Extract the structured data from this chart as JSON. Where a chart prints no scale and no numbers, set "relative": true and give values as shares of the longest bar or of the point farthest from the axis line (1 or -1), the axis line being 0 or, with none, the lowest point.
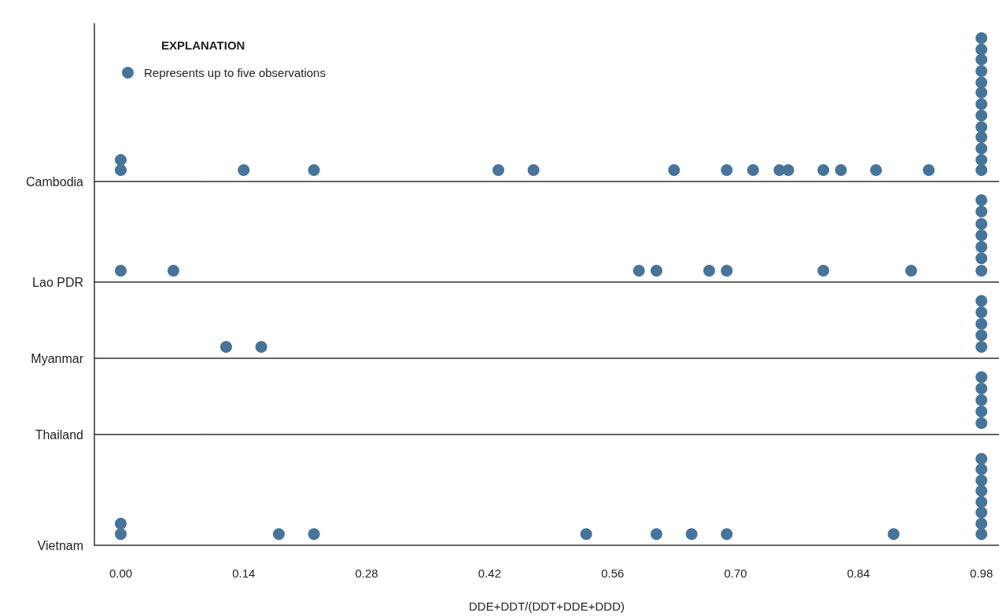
{
  "chart_data": [
    {
      "type": "scatter",
      "ylabel": "Cambodia",
      "legend": "top left",
      "legend_title": "EXPLANATION",
      "marker": "circle",
      "relative": true,
      "tick_labels": false,
      "xlim": [
        -0.03,
        1.0
      ],
      "x": [
        0,
        0,
        0.14,
        0.22,
        0.43,
        0.47,
        0.63,
        0.69,
        0.72,
        0.75,
        0.76,
        0.8,
        0.82,
        0.86,
        0.92,
        0.98,
        0.98,
        0.98,
        0.98,
        0.98,
        0.98,
        0.98,
        0.98,
        0.98,
        0.98,
        0.98,
        0.98,
        0.98
      ],
      "series": [
        {
          "name": "Represents up to five observations",
          "color": "#46749a",
          "values": [
            0.08,
            0.15,
            0.08,
            0.08,
            0.08,
            0.08,
            0.08,
            0.08,
            0.08,
            0.08,
            0.08,
            0.08,
            0.08,
            0.08,
            0.08,
            0.08,
            0.15,
            0.23,
            0.31,
            0.38,
            0.46,
            0.54,
            0.62,
            0.69,
            0.77,
            0.85,
            0.92,
            1
          ]
        }
      ]
    },
    {
      "type": "scatter",
      "ylabel": "Lao PDR",
      "marker": "circle",
      "relative": true,
      "tick_labels": false,
      "xlim": [
        -0.03,
        1.0
      ],
      "x": [
        0,
        0.06,
        0.59,
        0.61,
        0.67,
        0.69,
        0.8,
        0.9,
        0.98,
        0.98,
        0.98,
        0.98,
        0.98,
        0.98,
        0.98
      ],
      "series": [
        {
          "color": "#46749a",
          "values": [
            0.14,
            0.14,
            0.14,
            0.14,
            0.14,
            0.14,
            0.14,
            0.14,
            0.14,
            0.29,
            0.43,
            0.57,
            0.71,
            0.86,
            1
          ]
        }
      ]
    },
    {
      "type": "scatter",
      "ylabel": "Myanmar",
      "marker": "circle",
      "relative": true,
      "tick_labels": false,
      "xlim": [
        -0.03,
        1.0
      ],
      "x": [
        0.12,
        0.16,
        0.98,
        0.98,
        0.98,
        0.98,
        0.98
      ],
      "series": [
        {
          "color": "#46749a",
          "values": [
            0.2,
            0.2,
            0.2,
            0.4,
            0.6,
            0.8,
            1
          ]
        }
      ]
    },
    {
      "type": "scatter",
      "ylabel": "Thailand",
      "marker": "circle",
      "relative": true,
      "tick_labels": false,
      "xlim": [
        -0.03,
        1.0
      ],
      "x": [
        0.98,
        0.98,
        0.98,
        0.98,
        0.98
      ],
      "series": [
        {
          "color": "#46749a",
          "values": [
            0.2,
            0.4,
            0.6,
            0.8,
            1
          ]
        }
      ]
    },
    {
      "type": "scatter",
      "ylabel": "Vietnam",
      "xlabel": "DDE+DDT/(DDT+DDE+DDD)",
      "marker": "circle",
      "relative": true,
      "tick_labels": "x",
      "xlim": [
        -0.03,
        1.0
      ],
      "xticks": [
        {
          "value": 0,
          "label": "0.00"
        },
        {
          "value": 0.14,
          "label": "0.14"
        },
        {
          "value": 0.28,
          "label": "0.28"
        },
        {
          "value": 0.42,
          "label": "0.42"
        },
        {
          "value": 0.56,
          "label": "0.56"
        },
        {
          "value": 0.7,
          "label": "0.70"
        },
        {
          "value": 0.84,
          "label": "0.84"
        },
        {
          "value": 0.98,
          "label": "0.98"
        }
      ],
      "x": [
        0,
        0,
        0.18,
        0.22,
        0.53,
        0.61,
        0.65,
        0.69,
        0.88,
        0.98,
        0.98,
        0.98,
        0.98,
        0.98,
        0.98,
        0.98,
        0.98
      ],
      "series": [
        {
          "color": "#46749a",
          "values": [
            0.13,
            0.25,
            0.13,
            0.13,
            0.13,
            0.13,
            0.13,
            0.13,
            0.13,
            0.13,
            0.25,
            0.38,
            0.5,
            0.63,
            0.75,
            0.88,
            1
          ]
        }
      ]
    }
  ]
}
